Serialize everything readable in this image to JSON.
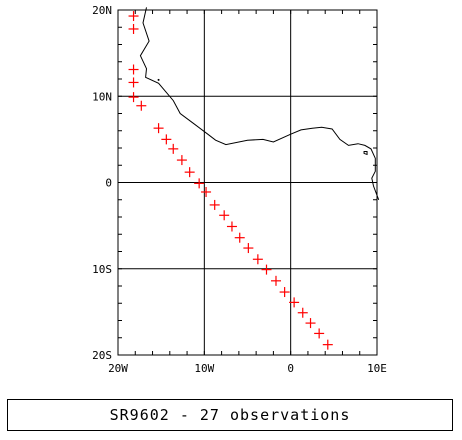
{
  "caption": "SR9602 - 27 observations",
  "map": {
    "lon_range": [
      -20,
      10
    ],
    "lat_range": [
      -20,
      20
    ],
    "lon_ticks": [
      {
        "value": -20,
        "label": "20W"
      },
      {
        "value": -10,
        "label": "10W"
      },
      {
        "value": 0,
        "label": "0"
      },
      {
        "value": 10,
        "label": "10E"
      }
    ],
    "lat_ticks": [
      {
        "value": 20,
        "label": "20N"
      },
      {
        "value": 10,
        "label": "10N"
      },
      {
        "value": 0,
        "label": "0"
      },
      {
        "value": -10,
        "label": "10S"
      },
      {
        "value": -20,
        "label": "20S"
      }
    ],
    "grid": true,
    "marker": "+",
    "marker_color": "#ff0000",
    "coast_color": "#000000"
  },
  "chart_data": {
    "type": "scatter",
    "xlabel": "",
    "ylabel": "",
    "xlim": [
      -20,
      10
    ],
    "ylim": [
      -20,
      20
    ],
    "grid": true,
    "series": [
      {
        "points": [
          [
            -18.2,
            19.3
          ],
          [
            -18.2,
            17.8
          ],
          [
            -18.2,
            13.1
          ],
          [
            -18.2,
            11.6
          ],
          [
            -18.2,
            9.9
          ],
          [
            -17.3,
            8.9
          ],
          [
            -15.3,
            6.3
          ],
          [
            -14.4,
            5.0
          ],
          [
            -13.6,
            3.9
          ],
          [
            -12.6,
            2.6
          ],
          [
            -11.7,
            1.2
          ],
          [
            -10.6,
            -0.1
          ],
          [
            -9.8,
            -1.1
          ],
          [
            -8.8,
            -2.6
          ],
          [
            -7.7,
            -3.8
          ],
          [
            -6.8,
            -5.1
          ],
          [
            -5.9,
            -6.4
          ],
          [
            -4.9,
            -7.6
          ],
          [
            -3.8,
            -8.9
          ],
          [
            -2.8,
            -10.1
          ],
          [
            -1.7,
            -11.4
          ],
          [
            -0.7,
            -12.7
          ],
          [
            0.4,
            -13.9
          ],
          [
            1.4,
            -15.1
          ],
          [
            2.3,
            -16.3
          ],
          [
            3.3,
            -17.5
          ],
          [
            4.3,
            -18.8
          ]
        ]
      }
    ]
  },
  "coastline": [
    [
      -16.7,
      20.3
    ],
    [
      -17.1,
      18.5
    ],
    [
      -16.4,
      16.4
    ],
    [
      -17.4,
      14.7
    ],
    [
      -16.7,
      13.2
    ],
    [
      -16.8,
      12.2
    ],
    [
      -15.3,
      11.5
    ],
    [
      -13.6,
      9.5
    ],
    [
      -12.8,
      8.0
    ],
    [
      -11.2,
      6.8
    ],
    [
      -9.6,
      5.6
    ],
    [
      -8.7,
      4.9
    ],
    [
      -7.5,
      4.4
    ],
    [
      -5.0,
      4.9
    ],
    [
      -3.2,
      5.0
    ],
    [
      -2.0,
      4.7
    ],
    [
      0.0,
      5.6
    ],
    [
      1.2,
      6.1
    ],
    [
      2.5,
      6.3
    ],
    [
      3.6,
      6.4
    ],
    [
      4.8,
      6.2
    ],
    [
      5.7,
      5.0
    ],
    [
      6.7,
      4.3
    ],
    [
      7.8,
      4.5
    ],
    [
      8.6,
      4.3
    ],
    [
      9.3,
      3.9
    ],
    [
      9.8,
      2.8
    ],
    [
      9.8,
      1.3
    ],
    [
      9.4,
      0.5
    ],
    [
      9.6,
      -0.4
    ],
    [
      10.2,
      -2.0
    ]
  ]
}
